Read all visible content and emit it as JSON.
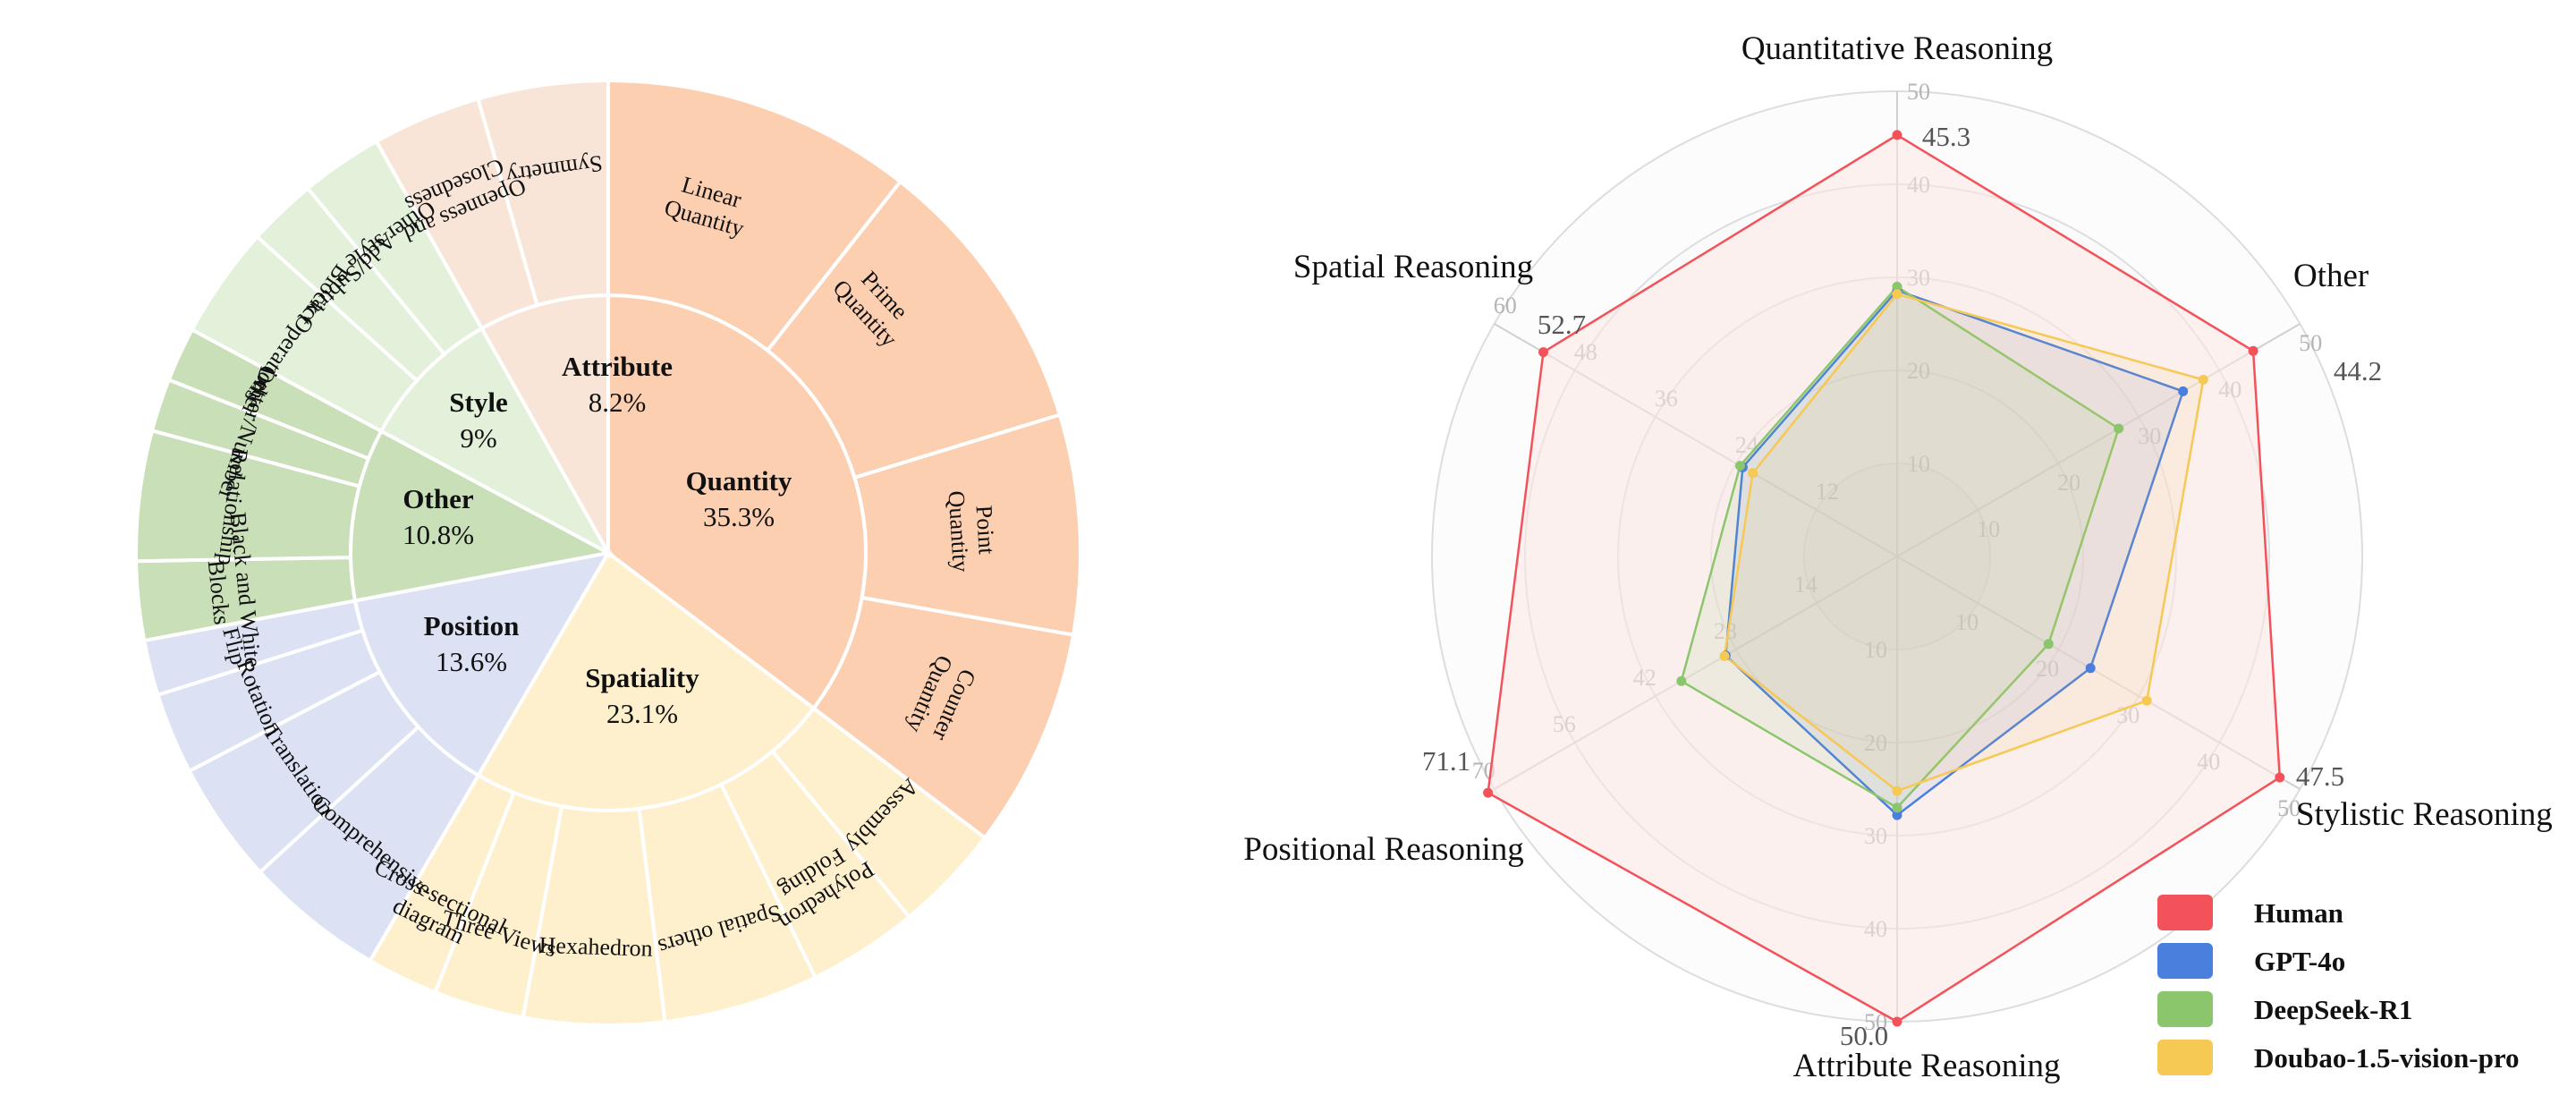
{
  "chart_data": [
    {
      "type": "sunburst",
      "title": "",
      "inner": [
        {
          "id": "quantity",
          "name": "Quantity",
          "percent": "35.3%",
          "value": 35.3,
          "color": "#fdcfb1"
        },
        {
          "id": "spatiality",
          "name": "Spatiality",
          "percent": "23.1%",
          "value": 23.1,
          "color": "#fff0cd"
        },
        {
          "id": "position",
          "name": "Position",
          "percent": "13.6%",
          "value": 13.6,
          "color": "#dce2f4"
        },
        {
          "id": "other",
          "name": "Other",
          "percent": "10.8%",
          "value": 10.8,
          "color": "#c8dfb8"
        },
        {
          "id": "style",
          "name": "Style",
          "percent": "9%",
          "value": 9.0,
          "color": "#e3f0da"
        },
        {
          "id": "attribute",
          "name": "Attribute",
          "percent": "8.2%",
          "value": 8.2,
          "color": "#f8e5d8"
        }
      ],
      "outer": [
        {
          "parent": "quantity",
          "lines": [
            "Linear",
            "Quantity"
          ]
        },
        {
          "parent": "quantity",
          "lines": [
            "Prime",
            "Quantity"
          ]
        },
        {
          "parent": "quantity",
          "lines": [
            "Point",
            "Quantity"
          ]
        },
        {
          "parent": "quantity",
          "lines": [
            "Counter",
            "Quantity"
          ]
        },
        {
          "parent": "spatiality",
          "lines": [
            "Assembly"
          ]
        },
        {
          "parent": "spatiality",
          "lines": [
            "Polyhedron",
            "Folding"
          ]
        },
        {
          "parent": "spatiality",
          "lines": [
            "Spatial others"
          ]
        },
        {
          "parent": "spatiality",
          "lines": [
            "Hexahedron"
          ]
        },
        {
          "parent": "spatiality",
          "lines": [
            "Three Views"
          ]
        },
        {
          "parent": "spatiality",
          "lines": [
            "Cross-sectional",
            "diagram"
          ]
        },
        {
          "parent": "position",
          "lines": [
            "Comprehensive"
          ]
        },
        {
          "parent": "position",
          "lines": [
            "Translation"
          ]
        },
        {
          "parent": "position",
          "lines": [
            "Rotation"
          ]
        },
        {
          "parent": "position",
          "lines": [
            "Flip"
          ]
        },
        {
          "parent": "other",
          "lines": [
            "Black and White",
            "Blocks"
          ]
        },
        {
          "parent": "other",
          "lines": [
            "Relationship"
          ]
        },
        {
          "parent": "other",
          "lines": [
            "Letter/Number"
          ]
        },
        {
          "parent": "other",
          "lines": [
            "Other"
          ]
        },
        {
          "parent": "style",
          "lines": [
            "Block Operations"
          ]
        },
        {
          "parent": "style",
          "lines": [
            "Add/Subtract"
          ]
        },
        {
          "parent": "style",
          "lines": [
            "Other style"
          ]
        },
        {
          "parent": "attribute",
          "lines": [
            "Openness and",
            "Closedness"
          ]
        },
        {
          "parent": "attribute",
          "lines": [
            "Symmetry"
          ]
        }
      ]
    },
    {
      "type": "radar",
      "title": "",
      "axes": [
        {
          "name": "Quantitative Reasoning",
          "max": 50,
          "human_label": "45.3",
          "ticks": [
            "10",
            "20",
            "30",
            "40",
            "50"
          ]
        },
        {
          "name": "Other",
          "max": 50,
          "human_label": "44.2",
          "ticks": [
            "10",
            "20",
            "30",
            "40",
            "50"
          ]
        },
        {
          "name": "Stylistic Reasoning",
          "max": 50,
          "human_label": "47.5",
          "ticks": [
            "10",
            "20",
            "30",
            "40",
            "50"
          ]
        },
        {
          "name": "Attribute Reasoning",
          "max": 50,
          "human_label": "50.0",
          "ticks": [
            "10",
            "20",
            "30",
            "40",
            "50"
          ]
        },
        {
          "name": "Positional Reasoning",
          "max": 70,
          "human_label": "71.1",
          "ticks": [
            "14",
            "28",
            "42",
            "56",
            "70"
          ]
        },
        {
          "name": "Spatial Reasoning",
          "max": 60,
          "human_label": "52.7",
          "ticks": [
            "12",
            "24",
            "36",
            "48",
            "60"
          ]
        }
      ],
      "series": [
        {
          "name": "Human",
          "color": "#f4525a",
          "fill": "#fde8e4",
          "values": [
            45.3,
            44.2,
            47.5,
            50.0,
            71.1,
            52.7
          ]
        },
        {
          "name": "GPT-4o",
          "color": "#4a7fdd",
          "fill": "",
          "values": [
            28.6,
            35.5,
            24.0,
            27.8,
            29.8,
            23.0
          ]
        },
        {
          "name": "DeepSeek-R1",
          "color": "#8cc66c",
          "fill": "",
          "values": [
            29.0,
            27.5,
            18.8,
            27.0,
            37.5,
            23.4
          ]
        },
        {
          "name": "Doubao-1.5-vision-pro",
          "color": "#f6c854",
          "fill": "",
          "values": [
            28.2,
            38.0,
            31.0,
            25.2,
            30.0,
            21.5
          ]
        }
      ],
      "legend_position": "bottom-right"
    }
  ]
}
